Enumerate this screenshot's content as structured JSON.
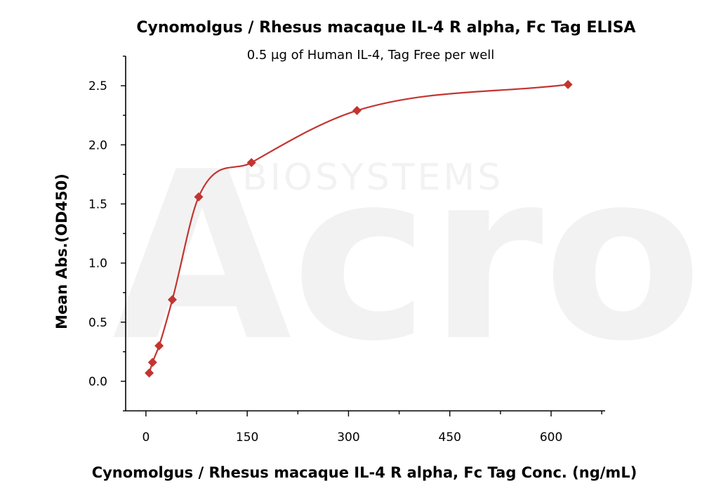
{
  "chart_data": {
    "type": "scatter",
    "title": "Cynomolgus / Rhesus macaque IL-4 R alpha, Fc Tag ELISA",
    "subtitle": "0.5 μg of Human IL-4, Tag Free per well",
    "xlabel": "Cynomolgus / Rhesus macaque IL-4 R alpha, Fc Tag Conc. (ng/mL)",
    "ylabel": "Mean Abs.(OD450)",
    "xlim": [
      -30,
      680
    ],
    "ylim": [
      -0.25,
      2.75
    ],
    "x_ticks": [
      0,
      150,
      300,
      450,
      600
    ],
    "x_tick_labels": [
      "0",
      "150",
      "300",
      "450",
      "600"
    ],
    "y_ticks": [
      0,
      0.5,
      1.0,
      1.5,
      2.0,
      2.5
    ],
    "y_tick_labels": [
      "0.0",
      "0.5",
      "1.0",
      "1.5",
      "2.0",
      "2.5"
    ],
    "marker": "diamond",
    "color": "#c23531",
    "grid": false,
    "series": [
      {
        "x": [
          4.9,
          9.8,
          19.5,
          39.1,
          78.1,
          156.3,
          312.5,
          625
        ],
        "y": [
          0.07,
          0.16,
          0.3,
          0.69,
          1.56,
          1.85,
          2.29,
          2.51
        ]
      }
    ],
    "fit_curve": "4-parameter logistic"
  },
  "watermark": {
    "brand": "Acro",
    "text": "BIOSYSTEMS"
  }
}
